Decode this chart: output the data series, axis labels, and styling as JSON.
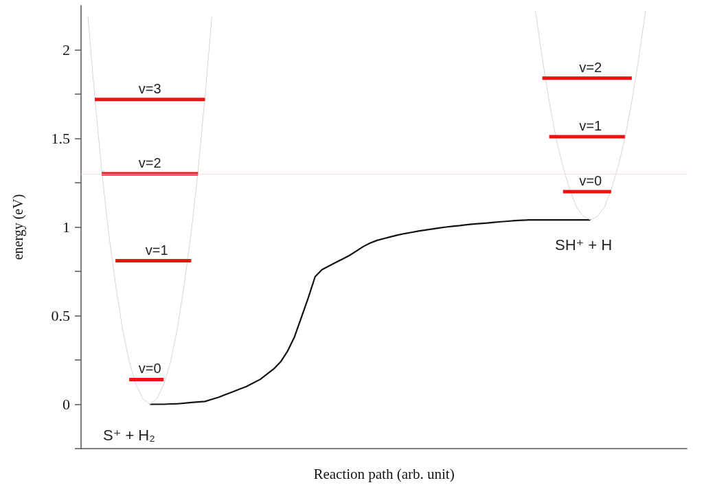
{
  "chart_data": {
    "type": "line",
    "xlabel": "Reaction path (arb. unit)",
    "ylabel": "energy (eV)",
    "categories": [
      null,
      null,
      null,
      null,
      null,
      null,
      null,
      null,
      null,
      null,
      null,
      null,
      null,
      null,
      null,
      null,
      null,
      null,
      null,
      null,
      null,
      null,
      null,
      null,
      null,
      null,
      null,
      null,
      null,
      null,
      null,
      null,
      null,
      null,
      null,
      null,
      null,
      null,
      null,
      null,
      null,
      null,
      null,
      null,
      null,
      null,
      null,
      null,
      null,
      null,
      null,
      null,
      null,
      null,
      null,
      null,
      null,
      null,
      null,
      null,
      null,
      null,
      null,
      null,
      null,
      null,
      null,
      null,
      null,
      null,
      null,
      null,
      null,
      null,
      null,
      null,
      null,
      null,
      null,
      null,
      null,
      null,
      null,
      null,
      null,
      null,
      null,
      null,
      null
    ],
    "ylim": [
      -0.25,
      2.25
    ],
    "yticks": [
      {
        "value": -0.25,
        "label": null
      },
      0,
      {
        "value": 0.25,
        "label": null
      },
      0.5,
      {
        "value": 0.75,
        "label": null
      },
      1,
      {
        "value": 1.25,
        "label": null
      },
      1.5,
      {
        "value": 1.75,
        "label": null
      },
      2
    ],
    "tick_labels": "y",
    "grid": false,
    "legend": false,
    "marker": "none",
    "line_style": "solid",
    "ref_lines": [
      {
        "axis": "y",
        "value": 1.3,
        "color": "#f5dede"
      }
    ],
    "annotations": [
      "S⁺ + H₂",
      "SH⁺ + H"
    ],
    "series": [
      {
        "color": "#111111",
        "values": [
          null,
          null,
          null,
          null,
          null,
          null,
          null,
          null,
          null,
          null,
          0,
          0,
          0,
          0.002,
          0.003,
          0.006,
          0.01,
          0.013,
          0.016,
          0.028,
          0.04,
          0.055,
          0.07,
          0.085,
          0.1,
          0.12,
          0.14,
          0.17,
          0.2,
          0.24,
          0.3,
          0.38,
          0.49,
          0.6,
          0.72,
          0.76,
          0.78,
          0.8,
          0.82,
          0.84,
          0.865,
          0.89,
          0.91,
          0.925,
          0.935,
          0.945,
          0.955,
          0.963,
          0.97,
          0.977,
          0.983,
          0.989,
          0.995,
          1.0,
          1.004,
          1.008,
          1.013,
          1.017,
          1.02,
          1.023,
          1.027,
          1.03,
          1.033,
          1.036,
          1.038,
          1.04,
          1.04,
          1.04,
          1.04,
          1.04,
          1.04,
          1.04,
          1.04,
          1.04,
          1.04,
          null,
          null,
          null,
          null,
          null,
          null,
          null,
          null,
          null,
          null,
          null,
          null,
          null,
          null
        ]
      },
      {
        "color": "#d4d4d4",
        "values": [
          null,
          2.19,
          1.73,
          1.32,
          0.97,
          0.68,
          0.43,
          0.24,
          0.11,
          0.03,
          0,
          0.03,
          0.11,
          0.24,
          0.43,
          0.68,
          0.97,
          1.32,
          1.73,
          2.19,
          null,
          null,
          null,
          null,
          null,
          null,
          null,
          null,
          null,
          null,
          null,
          null,
          null,
          null,
          null,
          null,
          null,
          null,
          null,
          null,
          null,
          null,
          null,
          null,
          null,
          null,
          null,
          null,
          null,
          null,
          null,
          null,
          null,
          null,
          null,
          null,
          null,
          null,
          null,
          null,
          null,
          null,
          null,
          null,
          null,
          null,
          null,
          null,
          null,
          null,
          null,
          null,
          null,
          null,
          null,
          null,
          null,
          null,
          null,
          null,
          null,
          null,
          null,
          null,
          null,
          null,
          null,
          null,
          null
        ]
      },
      {
        "color": "#d4d4d4",
        "values": [
          null,
          null,
          null,
          null,
          null,
          null,
          null,
          null,
          null,
          null,
          null,
          null,
          null,
          null,
          null,
          null,
          null,
          null,
          null,
          null,
          null,
          null,
          null,
          null,
          null,
          null,
          null,
          null,
          null,
          null,
          null,
          null,
          null,
          null,
          null,
          null,
          null,
          null,
          null,
          null,
          null,
          null,
          null,
          null,
          null,
          null,
          null,
          null,
          null,
          null,
          null,
          null,
          null,
          null,
          null,
          null,
          null,
          null,
          null,
          null,
          null,
          null,
          null,
          null,
          null,
          null,
          2.22,
          1.95,
          1.71,
          1.5,
          1.34,
          1.21,
          1.11,
          1.06,
          1.04,
          1.06,
          1.11,
          1.21,
          1.34,
          1.5,
          1.71,
          1.95,
          2.22,
          null,
          null,
          null,
          null,
          null,
          null
        ]
      },
      {
        "name": "v=0",
        "color": "#ee1111",
        "values": [
          null,
          null,
          null,
          null,
          null,
          null,
          null,
          0.14,
          0.14,
          0.14,
          0.14,
          0.14,
          0.14,
          null,
          null,
          null,
          null,
          null,
          null,
          null,
          null,
          null,
          null,
          null,
          null,
          null,
          null,
          null,
          null,
          null,
          null,
          null,
          null,
          null,
          null,
          null,
          null,
          null,
          null,
          null,
          null,
          null,
          null,
          null,
          null,
          null,
          null,
          null,
          null,
          null,
          null,
          null,
          null,
          null,
          null,
          null,
          null,
          null,
          null,
          null,
          null,
          null,
          null,
          null,
          null,
          null,
          null,
          null,
          null,
          null,
          null,
          null,
          null,
          null,
          null,
          null,
          null,
          null,
          null,
          null,
          null,
          null,
          null,
          null,
          null,
          null,
          null,
          null,
          null
        ]
      },
      {
        "name": "v=1",
        "color": "#ee1111",
        "values": [
          null,
          null,
          null,
          null,
          null,
          0.81,
          0.81,
          0.81,
          0.81,
          0.81,
          0.81,
          0.81,
          0.81,
          0.81,
          0.81,
          0.81,
          0.81,
          null,
          null,
          null,
          null,
          null,
          null,
          null,
          null,
          null,
          null,
          null,
          null,
          null,
          null,
          null,
          null,
          null,
          null,
          null,
          null,
          null,
          null,
          null,
          null,
          null,
          null,
          null,
          null,
          null,
          null,
          null,
          null,
          null,
          null,
          null,
          null,
          null,
          null,
          null,
          null,
          null,
          null,
          null,
          null,
          null,
          null,
          null,
          null,
          null,
          null,
          null,
          null,
          null,
          null,
          null,
          null,
          null,
          null,
          null,
          null,
          null,
          null,
          null,
          null,
          null,
          null,
          null,
          null,
          null,
          null,
          null,
          null
        ]
      },
      {
        "name": "v=2",
        "color": "#ee1111",
        "values": [
          null,
          null,
          null,
          1.3,
          1.3,
          1.3,
          1.3,
          1.3,
          1.3,
          1.3,
          1.3,
          1.3,
          1.3,
          1.3,
          1.3,
          1.3,
          1.3,
          1.3,
          null,
          null,
          null,
          null,
          null,
          null,
          null,
          null,
          null,
          null,
          null,
          null,
          null,
          null,
          null,
          null,
          null,
          null,
          null,
          null,
          null,
          null,
          null,
          null,
          null,
          null,
          null,
          null,
          null,
          null,
          null,
          null,
          null,
          null,
          null,
          null,
          null,
          null,
          null,
          null,
          null,
          null,
          null,
          null,
          null,
          null,
          null,
          null,
          null,
          null,
          null,
          null,
          null,
          null,
          null,
          null,
          null,
          null,
          null,
          null,
          null,
          null,
          null,
          null,
          null,
          null,
          null,
          null,
          null,
          null,
          null
        ]
      },
      {
        "name": "v=3",
        "color": "#ee1111",
        "values": [
          null,
          null,
          1.72,
          1.72,
          1.72,
          1.72,
          1.72,
          1.72,
          1.72,
          1.72,
          1.72,
          1.72,
          1.72,
          1.72,
          1.72,
          1.72,
          1.72,
          1.72,
          1.72,
          null,
          null,
          null,
          null,
          null,
          null,
          null,
          null,
          null,
          null,
          null,
          null,
          null,
          null,
          null,
          null,
          null,
          null,
          null,
          null,
          null,
          null,
          null,
          null,
          null,
          null,
          null,
          null,
          null,
          null,
          null,
          null,
          null,
          null,
          null,
          null,
          null,
          null,
          null,
          null,
          null,
          null,
          null,
          null,
          null,
          null,
          null,
          null,
          null,
          null,
          null,
          null,
          null,
          null,
          null,
          null,
          null,
          null,
          null,
          null,
          null,
          null,
          null,
          null,
          null,
          null,
          null,
          null,
          null,
          null
        ]
      },
      {
        "name": "v=0",
        "color": "#ee1111",
        "values": [
          null,
          null,
          null,
          null,
          null,
          null,
          null,
          null,
          null,
          null,
          null,
          null,
          null,
          null,
          null,
          null,
          null,
          null,
          null,
          null,
          null,
          null,
          null,
          null,
          null,
          null,
          null,
          null,
          null,
          null,
          null,
          null,
          null,
          null,
          null,
          null,
          null,
          null,
          null,
          null,
          null,
          null,
          null,
          null,
          null,
          null,
          null,
          null,
          null,
          null,
          null,
          null,
          null,
          null,
          null,
          null,
          null,
          null,
          null,
          null,
          null,
          null,
          null,
          null,
          null,
          null,
          null,
          null,
          null,
          null,
          1.2,
          1.2,
          1.2,
          1.2,
          1.2,
          1.2,
          1.2,
          1.2,
          null,
          null,
          null,
          null,
          null,
          null,
          null,
          null,
          null,
          null,
          null
        ]
      },
      {
        "name": "v=1",
        "color": "#ee1111",
        "values": [
          null,
          null,
          null,
          null,
          null,
          null,
          null,
          null,
          null,
          null,
          null,
          null,
          null,
          null,
          null,
          null,
          null,
          null,
          null,
          null,
          null,
          null,
          null,
          null,
          null,
          null,
          null,
          null,
          null,
          null,
          null,
          null,
          null,
          null,
          null,
          null,
          null,
          null,
          null,
          null,
          null,
          null,
          null,
          null,
          null,
          null,
          null,
          null,
          null,
          null,
          null,
          null,
          null,
          null,
          null,
          null,
          null,
          null,
          null,
          null,
          null,
          null,
          null,
          null,
          null,
          null,
          null,
          null,
          1.51,
          1.51,
          1.51,
          1.51,
          1.51,
          1.51,
          1.51,
          1.51,
          1.51,
          1.51,
          1.51,
          1.51,
          null,
          null,
          null,
          null,
          null,
          null,
          null,
          null,
          null
        ]
      },
      {
        "name": "v=2",
        "color": "#ee1111",
        "values": [
          null,
          null,
          null,
          null,
          null,
          null,
          null,
          null,
          null,
          null,
          null,
          null,
          null,
          null,
          null,
          null,
          null,
          null,
          null,
          null,
          null,
          null,
          null,
          null,
          null,
          null,
          null,
          null,
          null,
          null,
          null,
          null,
          null,
          null,
          null,
          null,
          null,
          null,
          null,
          null,
          null,
          null,
          null,
          null,
          null,
          null,
          null,
          null,
          null,
          null,
          null,
          null,
          null,
          null,
          null,
          null,
          null,
          null,
          null,
          null,
          null,
          null,
          null,
          null,
          null,
          null,
          null,
          1.84,
          1.84,
          1.84,
          1.84,
          1.84,
          1.84,
          1.84,
          1.84,
          1.84,
          1.84,
          1.84,
          1.84,
          1.84,
          1.84,
          null,
          null,
          null,
          null,
          null,
          null,
          null,
          null
        ]
      }
    ]
  }
}
